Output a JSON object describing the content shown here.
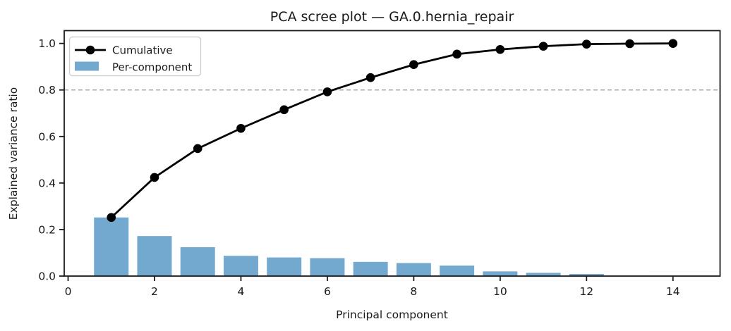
{
  "figure": {
    "background": "#ffffff"
  },
  "chart_data": {
    "type": "bar+line",
    "title": "PCA scree plot — GA.0.hernia_repair",
    "xlabel": "Principal component",
    "ylabel": "Explained variance ratio",
    "categories": [
      1,
      2,
      3,
      4,
      5,
      6,
      7,
      8,
      9,
      10,
      11,
      12,
      13,
      14
    ],
    "series": [
      {
        "name": "Cumulative",
        "type": "line",
        "color": "#000000",
        "marker": "circle",
        "values": [
          0.252,
          0.424,
          0.548,
          0.635,
          0.715,
          0.792,
          0.853,
          0.909,
          0.954,
          0.974,
          0.988,
          0.997,
          0.999,
          1.0
        ]
      },
      {
        "name": "Per-component",
        "type": "bar",
        "color": "#74a9cf",
        "values": [
          0.252,
          0.172,
          0.124,
          0.087,
          0.08,
          0.077,
          0.061,
          0.056,
          0.045,
          0.02,
          0.014,
          0.009,
          0.002,
          0.001
        ]
      }
    ],
    "threshold_line": {
      "y": 0.8,
      "style": "dashed",
      "color": "#aaaaaa"
    },
    "xticks": [
      0,
      2,
      4,
      6,
      8,
      10,
      12,
      14
    ],
    "xticklabels": [
      "0",
      "2",
      "4",
      "6",
      "8",
      "10",
      "12",
      "14"
    ],
    "yticks": [
      0.0,
      0.2,
      0.4,
      0.6,
      0.8,
      1.0
    ],
    "yticklabels": [
      "0.0",
      "0.2",
      "0.4",
      "0.6",
      "0.8",
      "1.0"
    ],
    "xlim": [
      -0.09,
      15.09
    ],
    "ylim": [
      0,
      1.055
    ],
    "bar_width": 0.8,
    "grid": false,
    "legend_position": "upper left",
    "spine_color": "#1a1a1a"
  }
}
